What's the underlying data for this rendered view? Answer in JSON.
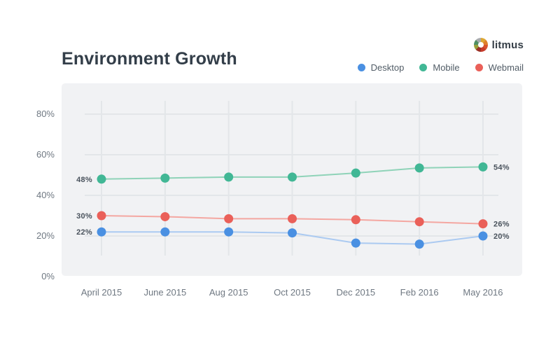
{
  "page": {
    "title": "Environment Growth"
  },
  "logo": {
    "label": "litmus"
  },
  "chart_data": {
    "type": "line",
    "title": "Environment Growth",
    "categories": [
      "April 2015",
      "June 2015",
      "Aug 2015",
      "Oct 2015",
      "Dec 2015",
      "Feb 2016",
      "May 2016"
    ],
    "series": [
      {
        "name": "Desktop",
        "color": "#4a90e2",
        "line_color": "#abcaf1",
        "values": [
          22,
          22,
          22,
          21.5,
          16.5,
          16,
          20
        ],
        "first_label": "22%",
        "last_label": "20%"
      },
      {
        "name": "Mobile",
        "color": "#41b795",
        "line_color": "#8fd3b8",
        "values": [
          48,
          48.5,
          49,
          49,
          51,
          53.5,
          54
        ],
        "first_label": "48%",
        "last_label": "54%"
      },
      {
        "name": "Webmail",
        "color": "#ea6059",
        "line_color": "#f4a7a1",
        "values": [
          30,
          29.5,
          28.5,
          28.5,
          28,
          27,
          26
        ],
        "first_label": "30%",
        "last_label": "26%"
      }
    ],
    "yticks": [
      {
        "label": "80%",
        "value": 80
      },
      {
        "label": "60%",
        "value": 60
      },
      {
        "label": "40%",
        "value": 40
      },
      {
        "label": "20%",
        "value": 20
      },
      {
        "label": "0%",
        "value": 0
      }
    ],
    "y_gridlines": [
      20,
      40,
      60,
      80
    ],
    "ylim": [
      0,
      95
    ],
    "xlabel": "",
    "ylabel": "",
    "grid": true,
    "legend_position": "top-right",
    "panel_background": "#f1f2f4",
    "gridline_color": "#e3e6e9"
  }
}
